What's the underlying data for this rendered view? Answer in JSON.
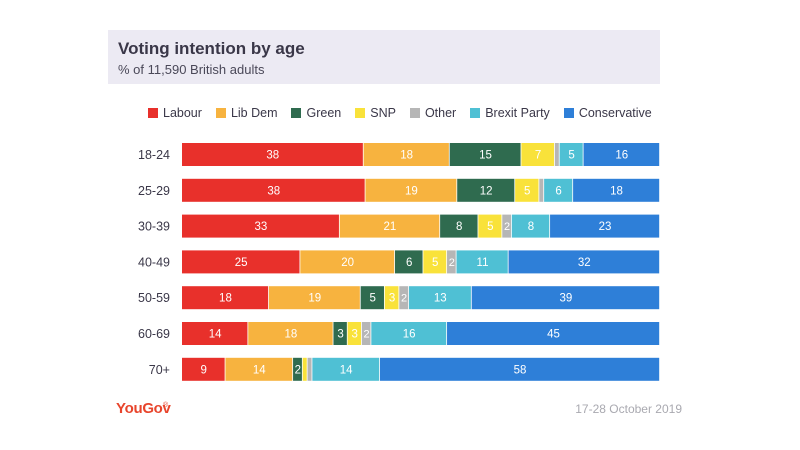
{
  "chart_data": {
    "type": "bar",
    "orientation": "horizontal",
    "stacked": true,
    "title": "Voting intention by age",
    "subtitle": "% of 11,590 British adults",
    "categories": [
      "18-24",
      "25-29",
      "30-39",
      "40-49",
      "50-59",
      "60-69",
      "70+"
    ],
    "series": [
      {
        "name": "Labour",
        "color": "#e8302b",
        "values": [
          38,
          38,
          33,
          25,
          18,
          14,
          9
        ]
      },
      {
        "name": "Lib Dem",
        "color": "#f7b33f",
        "values": [
          18,
          19,
          21,
          20,
          19,
          18,
          14
        ]
      },
      {
        "name": "Green",
        "color": "#2f6b4f",
        "values": [
          15,
          12,
          8,
          6,
          5,
          3,
          2
        ]
      },
      {
        "name": "SNP",
        "color": "#f9e23a",
        "values": [
          7,
          5,
          5,
          5,
          3,
          3,
          1
        ]
      },
      {
        "name": "Other",
        "color": "#b6b6b6",
        "values": [
          1,
          1,
          2,
          2,
          2,
          2,
          1
        ]
      },
      {
        "name": "Brexit Party",
        "color": "#4fc0d4",
        "values": [
          5,
          6,
          8,
          11,
          13,
          16,
          14
        ]
      },
      {
        "name": "Conservative",
        "color": "#2e7fd8",
        "values": [
          16,
          18,
          23,
          32,
          39,
          45,
          58
        ]
      }
    ],
    "xlim": [
      0,
      100
    ],
    "grid": false,
    "legend_position": "top"
  },
  "footer": {
    "brand": "YouGov",
    "brand_mark": "®",
    "date": "17-28 October 2019"
  }
}
